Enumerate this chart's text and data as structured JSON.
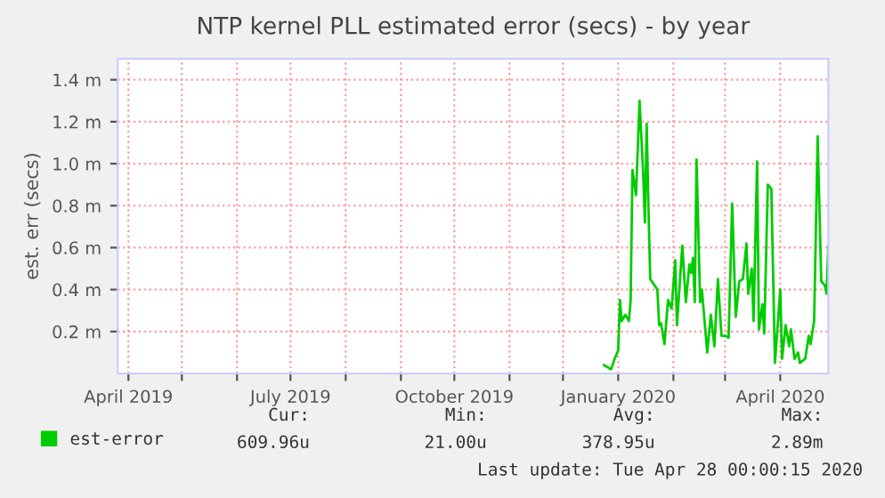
{
  "chart_data": {
    "type": "line",
    "title": "NTP kernel PLL estimated error (secs) - by year",
    "ylabel": "est. err (secs)",
    "x": [
      "2019-12-24",
      "2019-12-28",
      "2019-12-30",
      "2020-01-01",
      "2020-01-02",
      "2020-01-03",
      "2020-01-05",
      "2020-01-07",
      "2020-01-08",
      "2020-01-09",
      "2020-01-11",
      "2020-01-13",
      "2020-01-15",
      "2020-01-16",
      "2020-01-17",
      "2020-01-18",
      "2020-01-19",
      "2020-01-23",
      "2020-01-24",
      "2020-01-25",
      "2020-01-27",
      "2020-01-29",
      "2020-01-31",
      "2020-02-02",
      "2020-02-03",
      "2020-02-06",
      "2020-02-08",
      "2020-02-10",
      "2020-02-11",
      "2020-02-12",
      "2020-02-13",
      "2020-02-14",
      "2020-02-16",
      "2020-02-17",
      "2020-02-20",
      "2020-02-22",
      "2020-02-24",
      "2020-02-26",
      "2020-02-28",
      "2020-03-01",
      "2020-03-03",
      "2020-03-05",
      "2020-03-07",
      "2020-03-09",
      "2020-03-11",
      "2020-03-13",
      "2020-03-14",
      "2020-03-16",
      "2020-03-17",
      "2020-03-19",
      "2020-03-20",
      "2020-03-22",
      "2020-03-23",
      "2020-03-25",
      "2020-03-27",
      "2020-03-29",
      "2020-03-31",
      "2020-04-01",
      "2020-04-02",
      "2020-04-04",
      "2020-04-06",
      "2020-04-07",
      "2020-04-09",
      "2020-04-11",
      "2020-04-12",
      "2020-04-15",
      "2020-04-17",
      "2020-04-18",
      "2020-04-20",
      "2020-04-22",
      "2020-04-24",
      "2020-04-26",
      "2020-04-27",
      "2020-04-28"
    ],
    "series": [
      {
        "name": "est-error",
        "color": "#00cc00",
        "values": [
          0.04,
          0.02,
          0.07,
          0.11,
          0.35,
          0.25,
          0.28,
          0.25,
          0.35,
          0.97,
          0.85,
          1.3,
          0.96,
          0.72,
          1.19,
          0.79,
          0.45,
          0.4,
          0.23,
          0.24,
          0.14,
          0.35,
          0.31,
          0.54,
          0.23,
          0.61,
          0.34,
          0.52,
          0.48,
          0.55,
          0.34,
          1.02,
          0.34,
          0.4,
          0.1,
          0.28,
          0.13,
          0.45,
          0.18,
          0.18,
          0.17,
          0.81,
          0.27,
          0.44,
          0.45,
          0.62,
          0.38,
          0.5,
          0.25,
          1.01,
          0.21,
          0.33,
          0.19,
          0.9,
          0.88,
          0.05,
          0.28,
          0.4,
          0.07,
          0.23,
          0.13,
          0.21,
          0.07,
          0.1,
          0.05,
          0.07,
          0.18,
          0.14,
          0.25,
          1.13,
          0.44,
          0.42,
          0.38,
          0.61
        ]
      }
    ],
    "xlim": [
      "2019-03-26",
      "2020-04-28"
    ],
    "xticks": [
      {
        "value": "2019-04-01",
        "label": "April 2019"
      },
      {
        "value": "2019-05-01",
        "label": null
      },
      {
        "value": "2019-06-01",
        "label": null
      },
      {
        "value": "2019-07-01",
        "label": "July 2019"
      },
      {
        "value": "2019-08-01",
        "label": null
      },
      {
        "value": "2019-09-01",
        "label": null
      },
      {
        "value": "2019-10-01",
        "label": "October 2019"
      },
      {
        "value": "2019-11-01",
        "label": null
      },
      {
        "value": "2019-12-01",
        "label": null
      },
      {
        "value": "2020-01-01",
        "label": "January 2020"
      },
      {
        "value": "2020-02-01",
        "label": null
      },
      {
        "value": "2020-03-01",
        "label": null
      },
      {
        "value": "2020-04-01",
        "label": "April 2020"
      }
    ],
    "ylim": [
      0,
      1.5
    ],
    "yticks": [
      {
        "value": 0.2,
        "label": "0.2 m"
      },
      {
        "value": 0.4,
        "label": "0.4 m"
      },
      {
        "value": 0.6,
        "label": "0.6 m"
      },
      {
        "value": 0.8,
        "label": "0.8 m"
      },
      {
        "value": 1.0,
        "label": "1.0 m"
      },
      {
        "value": 1.2,
        "label": "1.2 m"
      },
      {
        "value": 1.4,
        "label": "1.4 m"
      }
    ],
    "grid": true,
    "legend": "bottom left",
    "marker": "none",
    "line_style": "solid",
    "annotations": [
      "Cur:",
      "609.96u",
      "Min:",
      "21.00u",
      "Avg:",
      "378.95u",
      "Max:",
      "2.89m",
      "Last update: Tue Apr 28 00:00:15 2020"
    ]
  }
}
